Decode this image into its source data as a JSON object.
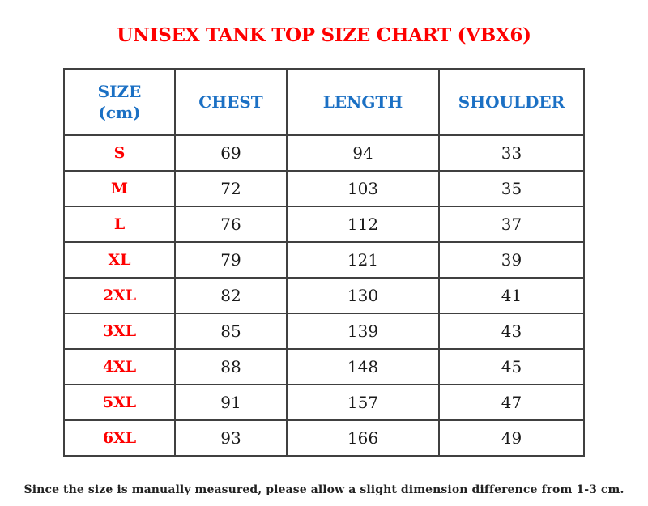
{
  "chart_data": {
    "type": "table",
    "title": "UNISEX TANK TOP SIZE CHART (VBX6)",
    "columns": [
      "SIZE\n(cm)",
      "CHEST",
      "LENGTH",
      "SHOULDER"
    ],
    "unit": "cm",
    "rows": [
      {
        "size": "S",
        "chest": 69,
        "length": 94,
        "shoulder": 33
      },
      {
        "size": "M",
        "chest": 72,
        "length": 103,
        "shoulder": 35
      },
      {
        "size": "L",
        "chest": 76,
        "length": 112,
        "shoulder": 37
      },
      {
        "size": "XL",
        "chest": 79,
        "length": 121,
        "shoulder": 39
      },
      {
        "size": "2XL",
        "chest": 82,
        "length": 130,
        "shoulder": 41
      },
      {
        "size": "3XL",
        "chest": 85,
        "length": 139,
        "shoulder": 43
      },
      {
        "size": "4XL",
        "chest": 88,
        "length": 148,
        "shoulder": 45
      },
      {
        "size": "5XL",
        "chest": 91,
        "length": 157,
        "shoulder": 47
      },
      {
        "size": "6XL",
        "chest": 93,
        "length": 166,
        "shoulder": 49
      }
    ],
    "footnote": "Since the size is manually measured, please allow a slight dimension difference from 1-3 cm.",
    "layout": {
      "grid": "on",
      "header_position": "top"
    }
  },
  "colors": {
    "title_red": "#FE0000",
    "header_blue": "#1B70C4",
    "size_label_red": "#FE0000",
    "value_text": "#1A1A1A",
    "border": "#404040",
    "note_text": "#222222",
    "background": "#FFFFFF"
  }
}
